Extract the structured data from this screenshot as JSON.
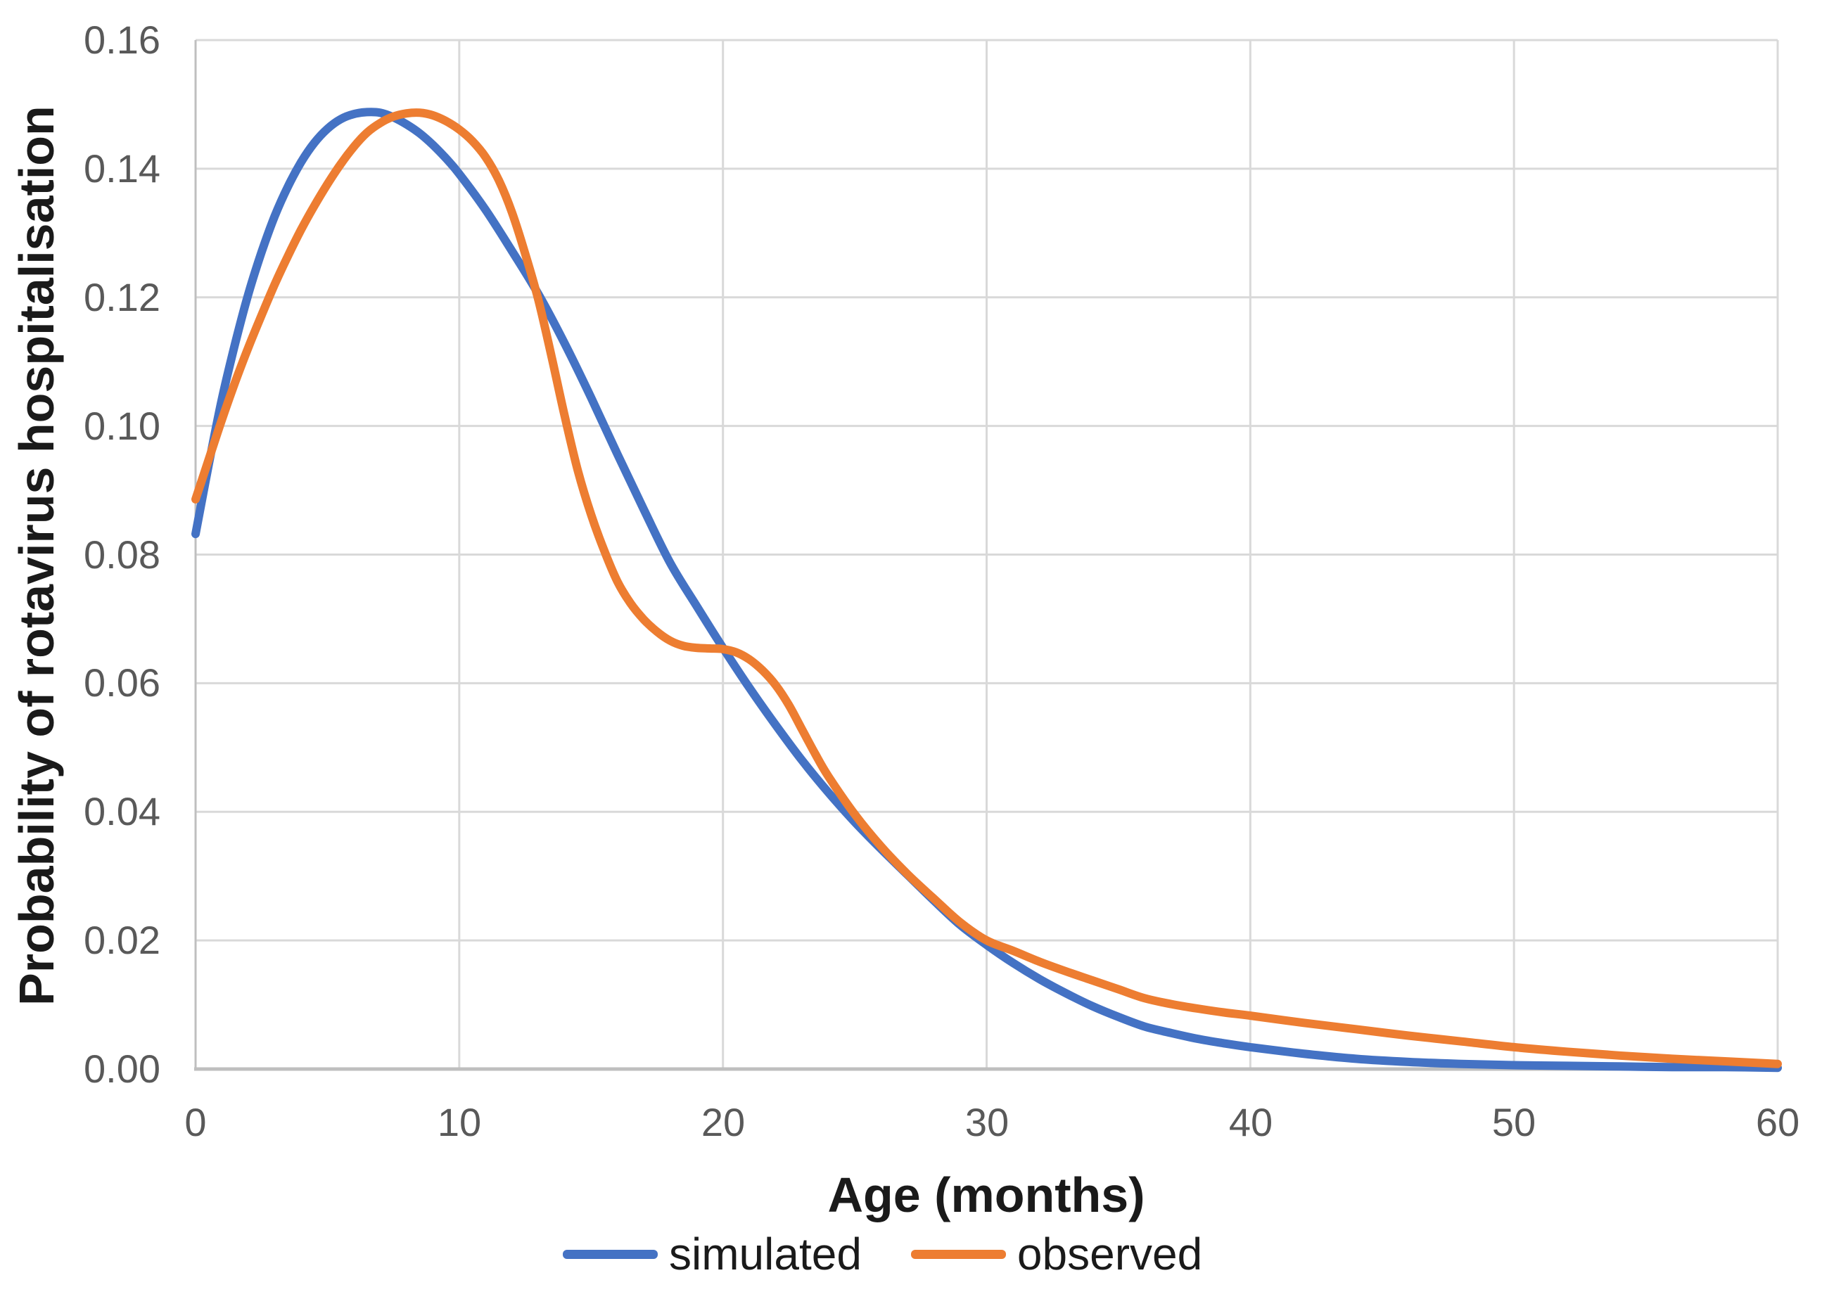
{
  "y_axis": {
    "title": "Probability of rotavirus hospitalisation",
    "ticks": [
      "0.16",
      "0.14",
      "0.12",
      "0.10",
      "0.08",
      "0.06",
      "0.04",
      "0.02",
      "0.00"
    ]
  },
  "x_axis": {
    "title": "Age (months)",
    "ticks": [
      "0",
      "10",
      "20",
      "30",
      "40",
      "50",
      "60"
    ]
  },
  "legend": [
    {
      "label": "simulated",
      "color": "#4472C4"
    },
    {
      "label": "observed",
      "color": "#ED7D31"
    }
  ],
  "colors": {
    "simulated_line": "#4472C4",
    "observed_line": "#ED7D31",
    "gridline": "#D9D9D9",
    "axis_line": "#BFBFBF",
    "tick_label": "#595959",
    "title_text": "#1a1a1a",
    "background": "#ffffff"
  },
  "chart_data": {
    "type": "line",
    "title": "",
    "xlabel": "Age (months)",
    "ylabel": "Probability of rotavirus hospitalisation",
    "xlim": [
      0,
      60
    ],
    "ylim": [
      0,
      0.16
    ],
    "x_ticks": [
      0,
      10,
      20,
      30,
      40,
      50,
      60
    ],
    "y_ticks": [
      0.0,
      0.02,
      0.04,
      0.06,
      0.08,
      0.1,
      0.12,
      0.14,
      0.16
    ],
    "grid": true,
    "legend_position": "bottom",
    "series": [
      {
        "name": "simulated",
        "color": "#4472C4",
        "points": [
          [
            0,
            0.0832
          ],
          [
            0.5,
            0.094
          ],
          [
            1,
            0.1042
          ],
          [
            1.5,
            0.1128
          ],
          [
            2,
            0.1205
          ],
          [
            2.5,
            0.127
          ],
          [
            3,
            0.1326
          ],
          [
            3.5,
            0.1372
          ],
          [
            4,
            0.141
          ],
          [
            4.5,
            0.144
          ],
          [
            5,
            0.1462
          ],
          [
            5.5,
            0.1477
          ],
          [
            6,
            0.1485
          ],
          [
            6.5,
            0.1488
          ],
          [
            7,
            0.1487
          ],
          [
            7.5,
            0.148
          ],
          [
            8,
            0.1469
          ],
          [
            8.5,
            0.1455
          ],
          [
            9,
            0.1437
          ],
          [
            9.5,
            0.1416
          ],
          [
            10,
            0.1392
          ],
          [
            11,
            0.1336
          ],
          [
            12,
            0.1272
          ],
          [
            13,
            0.1205
          ],
          [
            14,
            0.1128
          ],
          [
            15,
            0.1044
          ],
          [
            16,
            0.0956
          ],
          [
            17,
            0.087
          ],
          [
            18,
            0.0787
          ],
          [
            19,
            0.072
          ],
          [
            20,
            0.0655
          ],
          [
            21,
            0.0593
          ],
          [
            22,
            0.0535
          ],
          [
            23,
            0.048
          ],
          [
            24,
            0.043
          ],
          [
            25,
            0.0384
          ],
          [
            26,
            0.0342
          ],
          [
            27,
            0.0302
          ],
          [
            28,
            0.0262
          ],
          [
            29,
            0.0224
          ],
          [
            30,
            0.0193
          ],
          [
            31,
            0.0165
          ],
          [
            32,
            0.014
          ],
          [
            33,
            0.0118
          ],
          [
            34,
            0.0098
          ],
          [
            35,
            0.0081
          ],
          [
            36,
            0.0066
          ],
          [
            37,
            0.0056
          ],
          [
            38,
            0.0047
          ],
          [
            39,
            0.004
          ],
          [
            40,
            0.0034
          ],
          [
            42,
            0.0024
          ],
          [
            44,
            0.0016
          ],
          [
            46,
            0.0011
          ],
          [
            48,
            0.0008
          ],
          [
            50,
            0.0006
          ],
          [
            52,
            0.0005
          ],
          [
            54,
            0.0004
          ],
          [
            56,
            0.0003
          ],
          [
            58,
            0.0003
          ],
          [
            60,
            0.0002
          ]
        ]
      },
      {
        "name": "observed",
        "color": "#ED7D31",
        "points": [
          [
            0,
            0.0886
          ],
          [
            0.5,
            0.0948
          ],
          [
            1,
            0.101
          ],
          [
            1.5,
            0.1068
          ],
          [
            2,
            0.1122
          ],
          [
            2.5,
            0.1172
          ],
          [
            3,
            0.122
          ],
          [
            3.5,
            0.1264
          ],
          [
            4,
            0.1305
          ],
          [
            4.5,
            0.1342
          ],
          [
            5,
            0.1376
          ],
          [
            5.5,
            0.1407
          ],
          [
            6,
            0.1434
          ],
          [
            6.5,
            0.1456
          ],
          [
            7,
            0.1471
          ],
          [
            7.5,
            0.1481
          ],
          [
            8,
            0.1486
          ],
          [
            8.5,
            0.1487
          ],
          [
            9,
            0.1483
          ],
          [
            9.5,
            0.1474
          ],
          [
            10,
            0.1461
          ],
          [
            10.5,
            0.1443
          ],
          [
            11,
            0.1418
          ],
          [
            11.5,
            0.1382
          ],
          [
            12,
            0.1332
          ],
          [
            12.5,
            0.1268
          ],
          [
            13,
            0.1196
          ],
          [
            13.5,
            0.1108
          ],
          [
            14,
            0.1015
          ],
          [
            14.5,
            0.093
          ],
          [
            15,
            0.0862
          ],
          [
            15.5,
            0.0806
          ],
          [
            16,
            0.0758
          ],
          [
            16.5,
            0.0724
          ],
          [
            17,
            0.0699
          ],
          [
            17.5,
            0.068
          ],
          [
            18,
            0.0666
          ],
          [
            18.5,
            0.0658
          ],
          [
            19,
            0.0655
          ],
          [
            19.5,
            0.0654
          ],
          [
            20,
            0.0653
          ],
          [
            20.5,
            0.0648
          ],
          [
            21,
            0.0637
          ],
          [
            21.5,
            0.062
          ],
          [
            22,
            0.0597
          ],
          [
            22.5,
            0.0566
          ],
          [
            23,
            0.0528
          ],
          [
            23.5,
            0.049
          ],
          [
            24,
            0.0455
          ],
          [
            25,
            0.0396
          ],
          [
            26,
            0.0346
          ],
          [
            27,
            0.0303
          ],
          [
            28,
            0.0265
          ],
          [
            29,
            0.0228
          ],
          [
            30,
            0.02
          ],
          [
            31,
            0.0184
          ],
          [
            32,
            0.0167
          ],
          [
            33,
            0.0152
          ],
          [
            34,
            0.0138
          ],
          [
            35,
            0.0124
          ],
          [
            36,
            0.011
          ],
          [
            37,
            0.0101
          ],
          [
            38,
            0.0094
          ],
          [
            39,
            0.0088
          ],
          [
            40,
            0.0083
          ],
          [
            42,
            0.0072
          ],
          [
            44,
            0.0062
          ],
          [
            46,
            0.0052
          ],
          [
            48,
            0.0043
          ],
          [
            50,
            0.0034
          ],
          [
            52,
            0.0027
          ],
          [
            54,
            0.0021
          ],
          [
            56,
            0.0016
          ],
          [
            58,
            0.0012
          ],
          [
            60,
            0.0008
          ]
        ]
      }
    ]
  }
}
